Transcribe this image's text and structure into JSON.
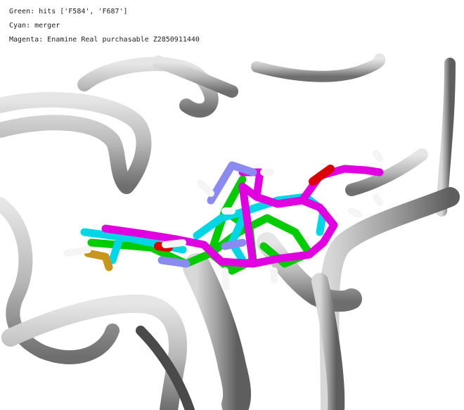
{
  "legend": {
    "green": "Green: hits ['F584', 'F687']",
    "cyan": "Cyan: merger",
    "magenta": "Magenta: Enamine Real purchasable Z2850911440"
  },
  "colors": {
    "background": "#ffffff",
    "protein_ribbon": "#a9a9a9",
    "green_hits": "#00cc00",
    "cyan_merger": "#00d0e0",
    "magenta_purchasable": "#e000e0",
    "oxygen": "#dd0000",
    "nitrogen": "#8888ee",
    "hydrogen": "#f2f2f2",
    "sulfur": "#c8961e"
  },
  "icons": {
    "scene": "molecular-docking-render"
  }
}
